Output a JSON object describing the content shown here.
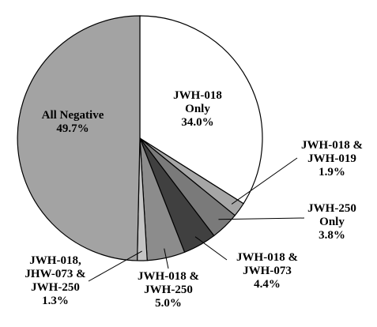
{
  "chart_data": {
    "type": "pie",
    "title": "",
    "slices": [
      {
        "label_lines": [
          "JWH-018",
          "Only",
          "34.0%"
        ],
        "value": 34.0,
        "color": "#ffffff"
      },
      {
        "label_lines": [
          "JWH-018 &",
          "JWH-019",
          "1.9%"
        ],
        "value": 1.9,
        "color": "#a6a6a6"
      },
      {
        "label_lines": [
          "JWH-250",
          "Only",
          "3.8%"
        ],
        "value": 3.8,
        "color": "#7a7a7a"
      },
      {
        "label_lines": [
          "JWH-018 &",
          "JWH-073",
          "4.4%"
        ],
        "value": 4.4,
        "color": "#404040"
      },
      {
        "label_lines": [
          "JWH-018 &",
          "JWH-250",
          "5.0%"
        ],
        "value": 5.0,
        "color": "#8c8c8c"
      },
      {
        "label_lines": [
          "JWH-018,",
          "JHW-073 &",
          "JWH-250",
          "1.3%"
        ],
        "value": 1.3,
        "color": "#c4c4c4"
      },
      {
        "label_lines": [
          "All Negative",
          "49.7%"
        ],
        "value": 49.7,
        "color": "#a3a3a3"
      }
    ]
  }
}
